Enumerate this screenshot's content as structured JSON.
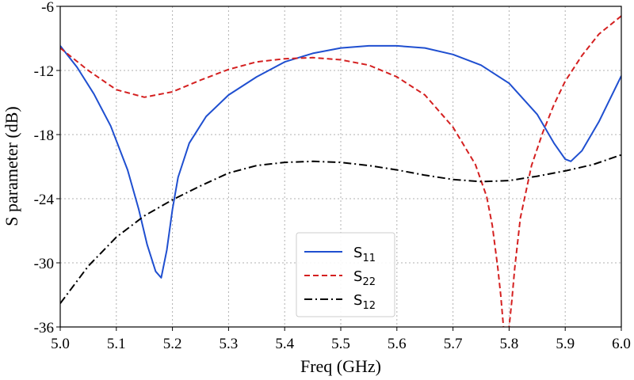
{
  "chart_data": {
    "type": "line",
    "xlabel": "Freq (GHz)",
    "ylabel": "S parameter (dB)",
    "xlim": [
      5.0,
      6.0
    ],
    "ylim": [
      -36,
      -6
    ],
    "xticks": [
      5.0,
      5.1,
      5.2,
      5.3,
      5.4,
      5.5,
      5.6,
      5.7,
      5.8,
      5.9,
      6.0
    ],
    "xtick_labels": [
      "5.0",
      "5.1",
      "5.2",
      "5.3",
      "5.4",
      "5.5",
      "5.6",
      "5.7",
      "5.8",
      "5.9",
      "6.0"
    ],
    "yticks": [
      -36,
      -30,
      -24,
      -18,
      -12,
      -6
    ],
    "ytick_labels": [
      "-36",
      "-30",
      "-24",
      "-18",
      "-12",
      "-6"
    ],
    "grid": true,
    "legend": "bottom-center",
    "series": [
      {
        "name": "S11",
        "label_main": "S",
        "label_sub": "11",
        "color": "#1f4fd0",
        "dash": "solid",
        "x": [
          5.0,
          5.03,
          5.06,
          5.09,
          5.12,
          5.14,
          5.155,
          5.17,
          5.18,
          5.19,
          5.2,
          5.21,
          5.23,
          5.26,
          5.3,
          5.35,
          5.4,
          5.45,
          5.5,
          5.55,
          5.6,
          5.65,
          5.7,
          5.75,
          5.8,
          5.85,
          5.88,
          5.9,
          5.91,
          5.93,
          5.96,
          6.0
        ],
        "values": [
          -9.7,
          -11.7,
          -14.2,
          -17.2,
          -21.3,
          -25.0,
          -28.3,
          -30.8,
          -31.4,
          -28.8,
          -25.0,
          -22.0,
          -18.8,
          -16.3,
          -14.3,
          -12.6,
          -11.2,
          -10.4,
          -9.9,
          -9.7,
          -9.7,
          -9.9,
          -10.5,
          -11.5,
          -13.2,
          -16.1,
          -18.8,
          -20.3,
          -20.5,
          -19.5,
          -16.8,
          -12.5
        ]
      },
      {
        "name": "S22",
        "label_main": "S",
        "label_sub": "22",
        "color": "#d42020",
        "dash": "dashed",
        "x": [
          5.0,
          5.05,
          5.1,
          5.15,
          5.2,
          5.25,
          5.3,
          5.35,
          5.4,
          5.45,
          5.5,
          5.55,
          5.6,
          5.65,
          5.7,
          5.74,
          5.76,
          5.77,
          5.78,
          5.785,
          5.79,
          5.795,
          5.8,
          5.805,
          5.81,
          5.82,
          5.84,
          5.86,
          5.88,
          5.9,
          5.93,
          5.96,
          6.0
        ],
        "values": [
          -9.9,
          -12.0,
          -13.8,
          -14.5,
          -14.0,
          -12.9,
          -11.9,
          -11.2,
          -10.9,
          -10.8,
          -11.0,
          -11.5,
          -12.6,
          -14.3,
          -17.3,
          -20.8,
          -23.8,
          -26.5,
          -30.5,
          -33.0,
          -36.0,
          -36.5,
          -36.0,
          -33.5,
          -30.5,
          -25.8,
          -20.9,
          -17.8,
          -15.2,
          -13.0,
          -10.6,
          -8.6,
          -6.9
        ]
      },
      {
        "name": "S12",
        "label_main": "S",
        "label_sub": "12",
        "color": "#000000",
        "dash": "dashdot",
        "x": [
          5.0,
          5.05,
          5.1,
          5.15,
          5.2,
          5.25,
          5.3,
          5.35,
          5.4,
          5.45,
          5.5,
          5.55,
          5.6,
          5.65,
          5.7,
          5.75,
          5.8,
          5.85,
          5.9,
          5.95,
          6.0
        ],
        "values": [
          -33.8,
          -30.3,
          -27.6,
          -25.6,
          -24.1,
          -22.8,
          -21.6,
          -20.9,
          -20.6,
          -20.5,
          -20.6,
          -20.9,
          -21.3,
          -21.8,
          -22.2,
          -22.4,
          -22.3,
          -21.9,
          -21.4,
          -20.8,
          -19.9
        ]
      }
    ]
  }
}
